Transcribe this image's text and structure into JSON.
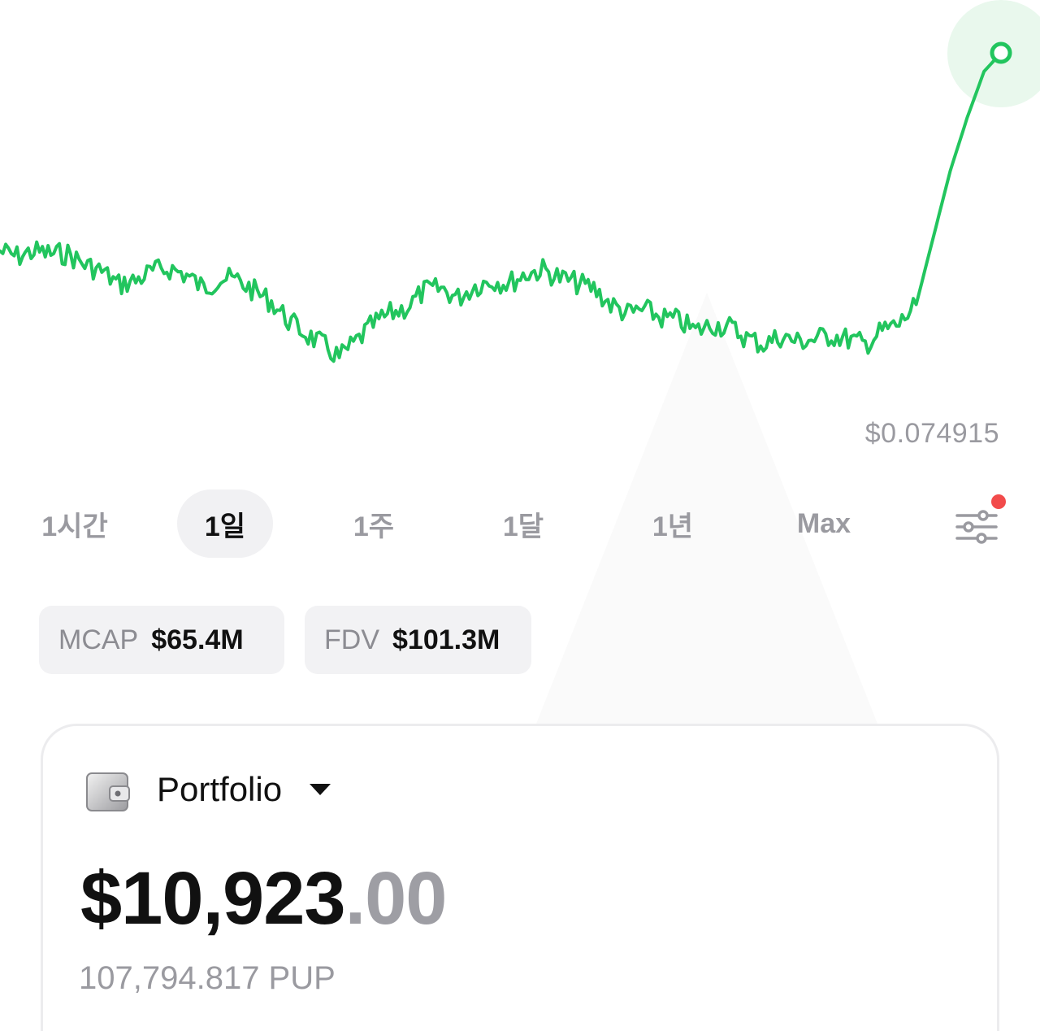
{
  "chart": {
    "type": "line",
    "color": "#22c55e",
    "current_price": "$0.074915",
    "highlight_color": "#e6f7ea"
  },
  "chart_data": {
    "type": "line",
    "series": [
      {
        "values": [
          0.06,
          0.0596,
          0.06,
          0.0598,
          0.0598,
          0.059,
          0.0585,
          0.0575,
          0.0578,
          0.0585,
          0.0587,
          0.0582,
          0.0572,
          0.058,
          0.0578,
          0.057,
          0.0562,
          0.0548,
          0.0538,
          0.053,
          0.052,
          0.0532,
          0.0545,
          0.0553,
          0.0558,
          0.057,
          0.0572,
          0.0565,
          0.0574,
          0.0578,
          0.0576,
          0.0583,
          0.0586,
          0.058,
          0.0576,
          0.0572,
          0.056,
          0.0553,
          0.0556,
          0.055,
          0.0548,
          0.054,
          0.0545,
          0.0543,
          0.0535,
          0.053,
          0.0536,
          0.0532,
          0.0534,
          0.0537,
          0.0534,
          0.053,
          0.054,
          0.0545,
          0.056,
          0.061,
          0.066,
          0.07,
          0.0735,
          0.0749
        ]
      }
    ]
  },
  "ranges": [
    {
      "label": "1시간",
      "active": false
    },
    {
      "label": "1일",
      "active": true
    },
    {
      "label": "1주",
      "active": false
    },
    {
      "label": "1달",
      "active": false
    },
    {
      "label": "1년",
      "active": false
    },
    {
      "label": "Max",
      "active": false
    }
  ],
  "settings": {
    "icon": "sliders-icon",
    "has_notification": true,
    "notification_color": "#f24b4b"
  },
  "stats": {
    "mcap_label": "MCAP",
    "mcap_value": "$65.4M",
    "fdv_label": "FDV",
    "fdv_value": "$101.3M"
  },
  "portfolio": {
    "icon": "wallet-icon",
    "title": "Portfolio",
    "balance_main": "$10,923",
    "balance_cents": ".00",
    "token_amount": "107,794.817 PUP"
  }
}
